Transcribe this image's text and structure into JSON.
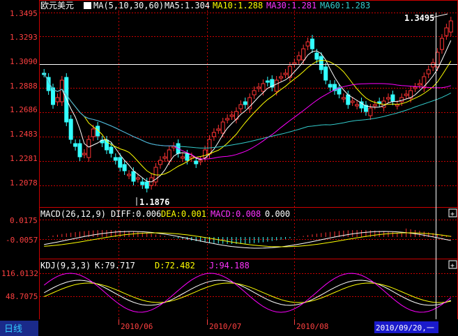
{
  "main_panel": {
    "symbol": "欧元美元",
    "ma_label": "MA(5,10,30,60)",
    "ma5": "MA5:1.304",
    "ma10": "MA10:1.288",
    "ma30": "MA30:1.281",
    "ma60": "MA60:1.283",
    "y_ticks": [
      "1.3495",
      "1.3293",
      "1.3090",
      "1.2888",
      "1.2686",
      "1.2483",
      "1.2281",
      "1.2078"
    ],
    "high_label": "1.3495",
    "low_label": "1.1876"
  },
  "macd_panel": {
    "title": "MACD(26,12,9)",
    "diff": "DIFF:0.006",
    "dea": "DEA:0.001",
    "macd": "MACD:0.008",
    "extra": "0.000",
    "y_ticks": [
      "0.0175",
      "-0.0057"
    ]
  },
  "kdj_panel": {
    "title": "KDJ(9,3,3)",
    "k": "K:79.717",
    "d": "D:72.482",
    "j": "J:94.188",
    "y_ticks": [
      "116.0132",
      "48.7075"
    ]
  },
  "footer": {
    "period_tab": "日线",
    "dates": [
      "2010/06",
      "2010/07",
      "2010/08"
    ],
    "cursor_date": "2010/09/20,一"
  },
  "colors": {
    "up": "#ff3333",
    "down": "#33ffff",
    "ma5": "#ffffff",
    "ma10": "#ffff00",
    "ma30": "#ff00ff",
    "ma60": "#33cccc",
    "grid": "#cc0000",
    "axis_text": "#ff4040"
  }
}
